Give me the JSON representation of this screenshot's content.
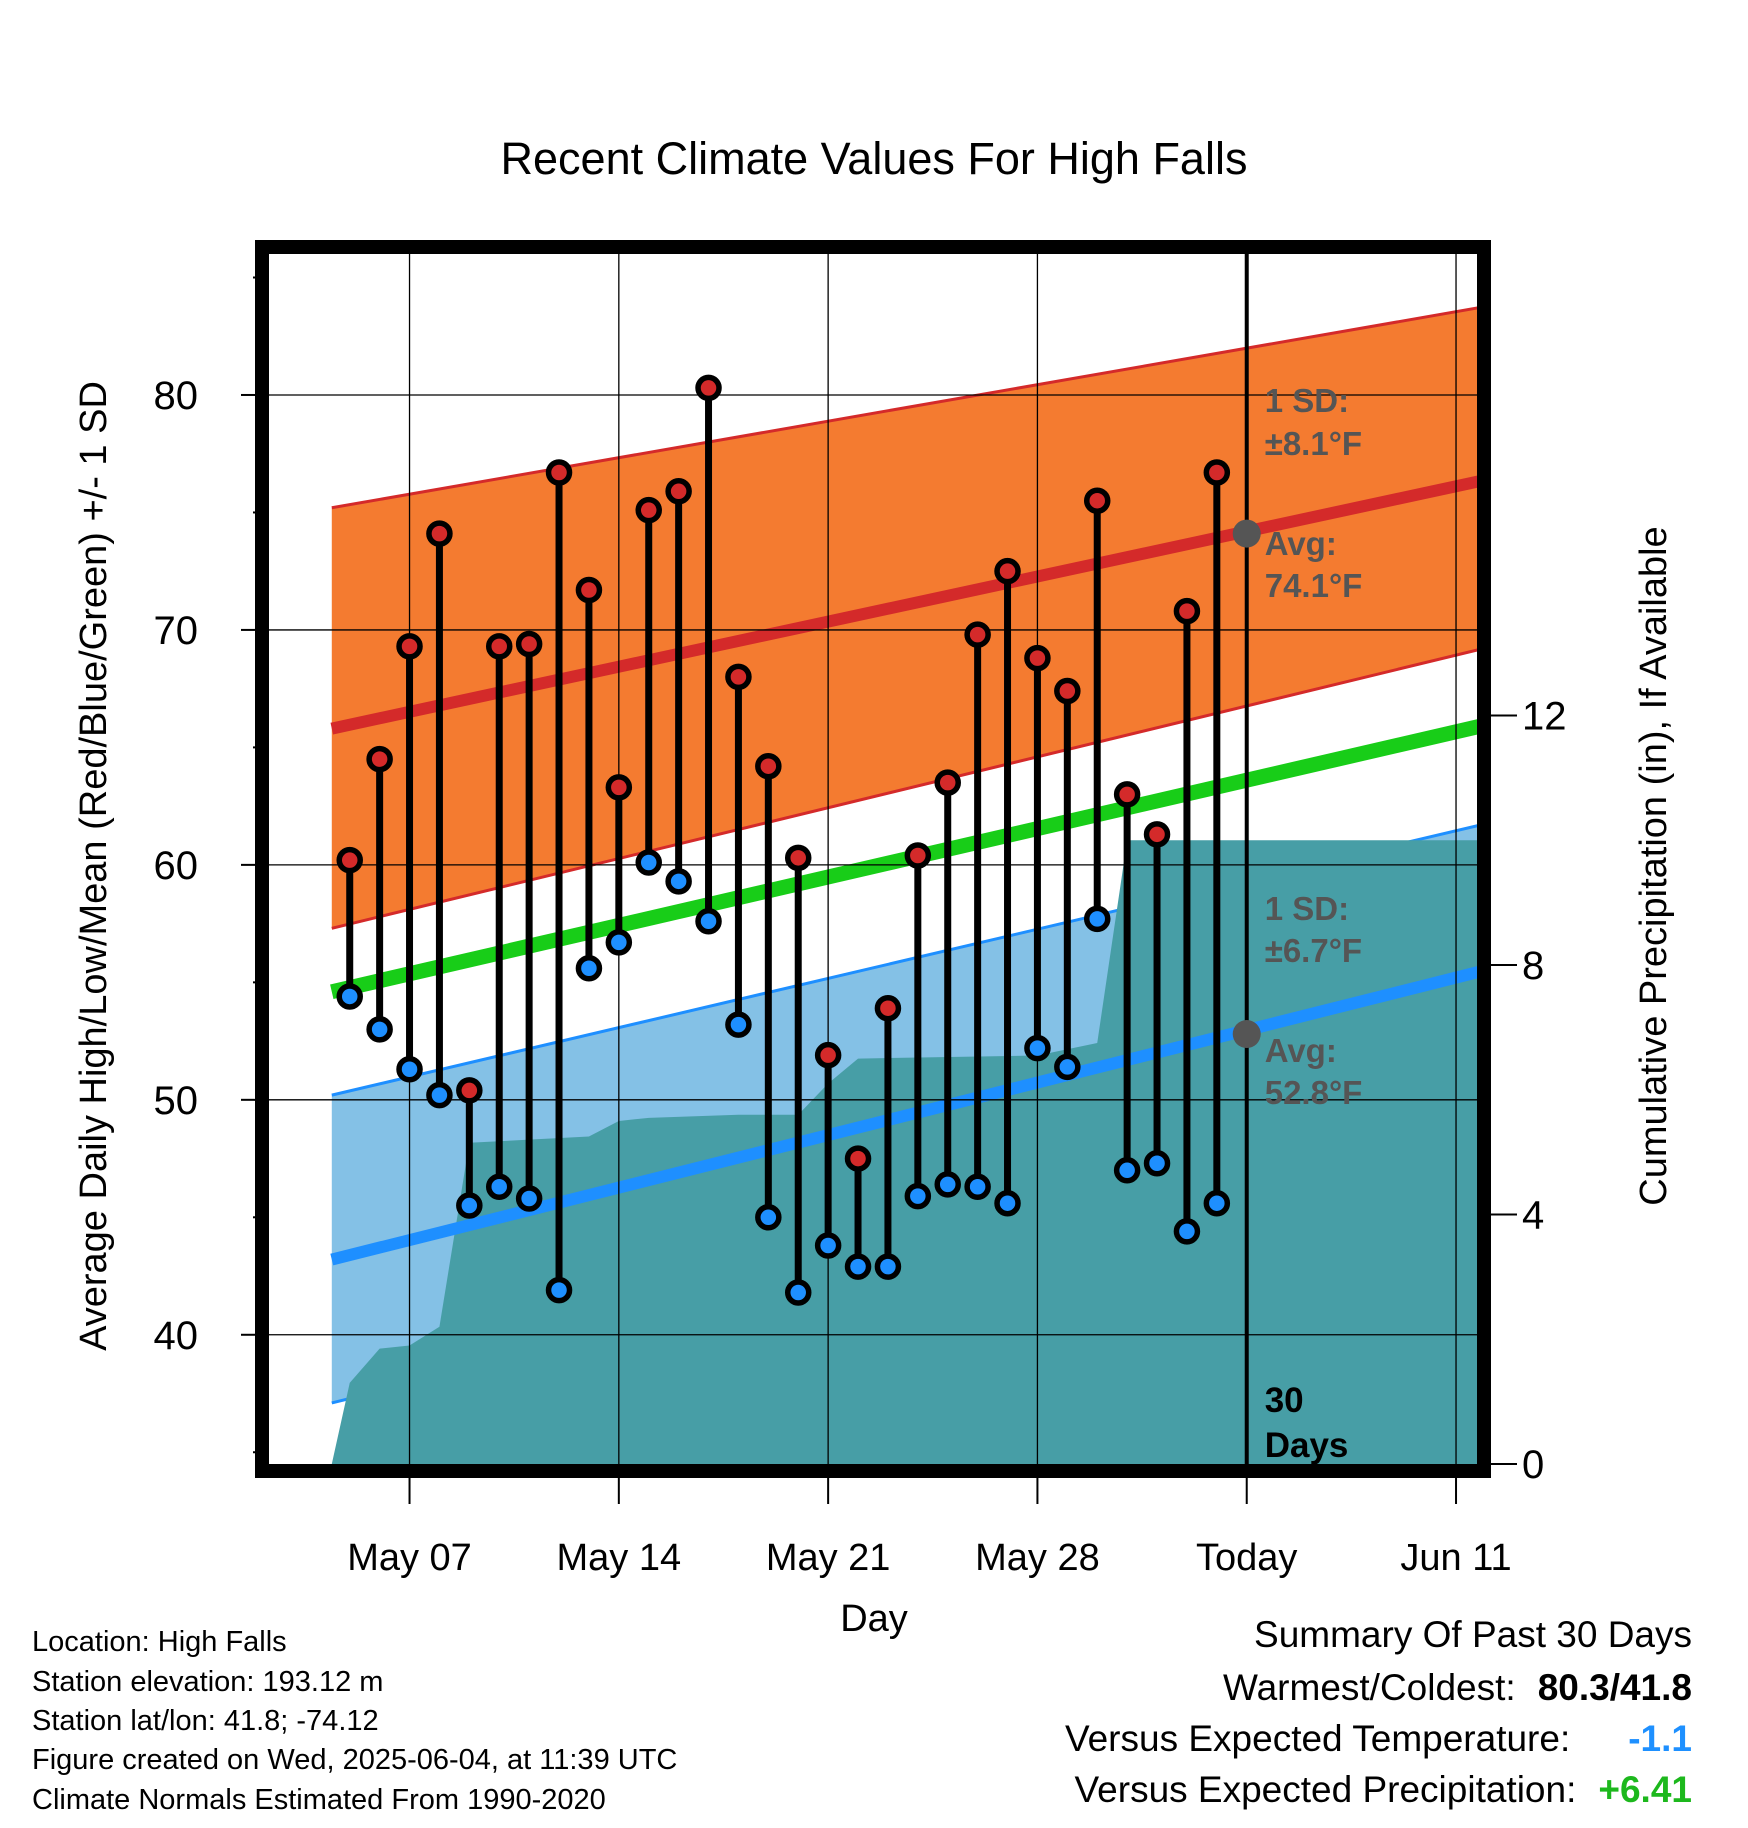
{
  "chart_data": {
    "type": "range-line",
    "title": "Recent Climate Values For High Falls",
    "xlabel": "Day",
    "ylabel_left": "Average Daily High/Low/Mean (Red/Blue/Green) +/- 1 SD",
    "ylabel_right": "Cumulative Precipitation (in), If Available",
    "x_range": [
      2.3,
      16.3
    ],
    "x_ticks": [
      {
        "day": 7,
        "label": "May 07"
      },
      {
        "day": 14,
        "label": "May 14"
      },
      {
        "day": 21,
        "label": "May 21"
      },
      {
        "day": 28,
        "label": "May 28"
      },
      {
        "day": 35,
        "label": "Today"
      },
      {
        "day": 42,
        "label": "Jun 11"
      }
    ],
    "y_left_range": [
      34.5,
      86.0
    ],
    "y_left_ticks": [
      40,
      50,
      60,
      70,
      80
    ],
    "y_right_range": [
      0,
      19.4
    ],
    "y_right_ticks": [
      0,
      4,
      8,
      12
    ],
    "today_day": 35,
    "days_label": [
      "30",
      "Days"
    ],
    "normals": {
      "start_day": 4.4,
      "end_day": 44.5,
      "high_mean": [
        65.8,
        76.8
      ],
      "high_sd_upper": [
        75.2,
        84.1
      ],
      "high_sd_lower": [
        57.3,
        69.7
      ],
      "mean": [
        54.6,
        66.4
      ],
      "low_mean": [
        43.2,
        56.0
      ],
      "low_sd_upper": [
        50.2,
        62.2
      ],
      "low_sd_lower": [
        37.1,
        49.6
      ]
    },
    "annotations": {
      "high_sd_label": [
        "1 SD:",
        "±8.1°F"
      ],
      "high_avg_label": [
        "Avg:",
        "74.1°F"
      ],
      "low_sd_label": [
        "1 SD:",
        "±6.7°F"
      ],
      "low_avg_label": [
        "Avg:",
        "52.8°F"
      ],
      "today_high_avg": 74.1,
      "today_low_avg": 52.8
    },
    "daily": {
      "days": [
        5,
        6,
        7,
        8,
        9,
        10,
        11,
        12,
        13,
        14,
        15,
        16,
        17,
        18,
        19,
        20,
        21,
        22,
        23,
        24,
        25,
        26,
        27,
        28,
        29,
        30,
        31,
        32,
        33,
        34
      ],
      "high": [
        60.2,
        64.5,
        69.3,
        74.1,
        50.4,
        69.3,
        69.4,
        76.7,
        71.7,
        63.3,
        75.1,
        75.9,
        80.3,
        68.0,
        64.2,
        60.3,
        51.9,
        47.5,
        53.9,
        60.4,
        63.5,
        69.8,
        72.5,
        68.8,
        67.4,
        75.5,
        63.0,
        61.3,
        70.8,
        76.7
      ],
      "low": [
        54.4,
        53.0,
        51.3,
        50.2,
        45.5,
        46.3,
        45.8,
        41.9,
        55.6,
        56.7,
        60.1,
        59.3,
        57.6,
        53.2,
        45.0,
        41.8,
        43.8,
        42.9,
        42.9,
        45.9,
        46.4,
        46.3,
        45.6,
        52.2,
        51.4,
        57.7,
        47.0,
        47.3,
        44.4,
        45.6
      ]
    },
    "precipitation": {
      "days": [
        4.4,
        5.0,
        6.0,
        7.0,
        8.0,
        9.0,
        11.0,
        13.0,
        14.0,
        15.0,
        18.0,
        20.0,
        21.0,
        22.0,
        28.0,
        30.0,
        31.0,
        44.5
      ],
      "cumulative": [
        0.0,
        1.3,
        1.85,
        1.9,
        2.2,
        5.15,
        5.2,
        5.25,
        5.5,
        5.55,
        5.6,
        5.6,
        6.1,
        6.5,
        6.55,
        6.75,
        10.0,
        10.0
      ]
    }
  },
  "footer": {
    "location": "Location: High Falls",
    "elevation": "Station elevation: 193.12 m",
    "latlon": "Station lat/lon: 41.8; -74.12",
    "created": "Figure created on Wed, 2025-06-04, at 11:39 UTC",
    "normals": "Climate Normals Estimated From 1990-2020"
  },
  "summary": {
    "title": "Summary Of Past 30 Days",
    "warmest_label": "Warmest/Coldest:",
    "warmest_value": "80.3/41.8",
    "temp_label": "Versus Expected Temperature:",
    "temp_value": "-1.1",
    "precip_label": "Versus Expected Precipitation:",
    "precip_value": "+6.41"
  },
  "colors": {
    "high_band": "#f47b30",
    "high_line": "#d42a2a",
    "low_band": "#84c1e6",
    "low_line": "#1e8fff",
    "mean_line": "#18cd18",
    "precip": "#479ea6",
    "high_dot": "#d42a2a",
    "low_dot": "#1e8fff",
    "annotation": "#555555"
  }
}
